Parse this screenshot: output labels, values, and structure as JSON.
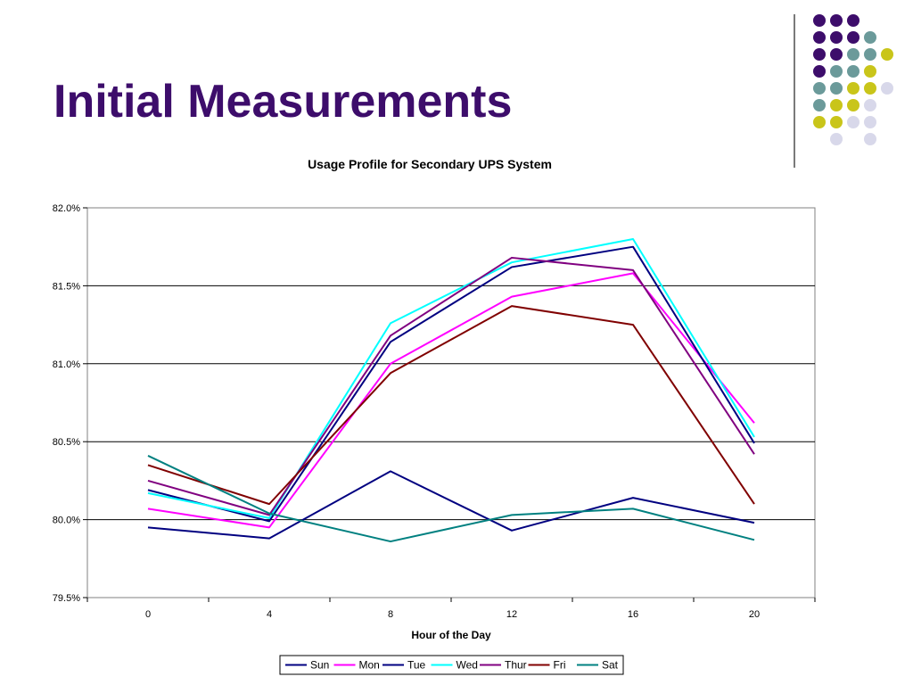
{
  "slide": {
    "title": "Initial Measurements"
  },
  "decoration": {
    "dot_colors": {
      "purple": "#3d0d6b",
      "teal": "#6b9a9a",
      "yellow": "#c9c51a",
      "lavender": "#d8d8ea"
    }
  },
  "chart_data": {
    "type": "line",
    "title": "Usage Profile for Secondary UPS System",
    "xlabel": "Hour of the Day",
    "ylabel": "",
    "x": [
      0,
      4,
      8,
      12,
      16,
      20
    ],
    "xlim": [
      -2,
      22
    ],
    "ylim": [
      79.5,
      82.0
    ],
    "y_ticks": [
      79.5,
      80.0,
      80.5,
      81.0,
      81.5,
      82.0
    ],
    "y_tick_labels": [
      "79.5%",
      "80.0%",
      "80.5%",
      "81.0%",
      "81.5%",
      "82.0%"
    ],
    "x_tick_labels": [
      "0",
      "4",
      "8",
      "12",
      "16",
      "20"
    ],
    "grid": "horizontal",
    "legend_position": "bottom",
    "series": [
      {
        "name": "Sun",
        "color": "#000080",
        "values": [
          79.95,
          79.88,
          80.31,
          79.93,
          80.14,
          79.98
        ]
      },
      {
        "name": "Mon",
        "color": "#ff00ff",
        "values": [
          80.07,
          79.95,
          81.0,
          81.43,
          81.58,
          80.62
        ]
      },
      {
        "name": "Tue",
        "color": "#000080",
        "values": [
          80.19,
          79.99,
          81.14,
          81.62,
          81.75,
          80.49
        ]
      },
      {
        "name": "Wed",
        "color": "#00ffff",
        "values": [
          80.17,
          80.01,
          81.26,
          81.65,
          81.8,
          80.53
        ]
      },
      {
        "name": "Thur",
        "color": "#800080",
        "values": [
          80.25,
          80.03,
          81.18,
          81.68,
          81.6,
          80.42
        ]
      },
      {
        "name": "Fri",
        "color": "#800000",
        "values": [
          80.35,
          80.1,
          80.94,
          81.37,
          81.25,
          80.1
        ]
      },
      {
        "name": "Sat",
        "color": "#008080",
        "values": [
          80.41,
          80.04,
          79.86,
          80.03,
          80.07,
          79.87
        ]
      }
    ]
  }
}
